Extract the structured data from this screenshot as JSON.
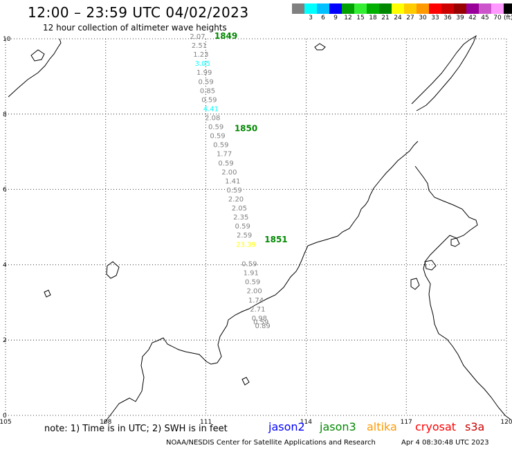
{
  "header": {
    "title": "12:00 – 23:59 UTC 04/02/2023",
    "subtitle": "12 hour collection of altimeter wave heights"
  },
  "scale": {
    "unit": "(ft)",
    "swatches": [
      {
        "color": "#808080",
        "label": ""
      },
      {
        "color": "#00ffff",
        "label": "3"
      },
      {
        "color": "#00c0ff",
        "label": "6"
      },
      {
        "color": "#0000ff",
        "label": "9"
      },
      {
        "color": "#00a000",
        "label": "12"
      },
      {
        "color": "#33ee33",
        "label": "15"
      },
      {
        "color": "#00b000",
        "label": "18"
      },
      {
        "color": "#008800",
        "label": "21"
      },
      {
        "color": "#ffff00",
        "label": "24"
      },
      {
        "color": "#ffcc00",
        "label": "27"
      },
      {
        "color": "#ff9900",
        "label": "30"
      },
      {
        "color": "#ff0000",
        "label": "33"
      },
      {
        "color": "#cc0000",
        "label": "36"
      },
      {
        "color": "#990000",
        "label": "39"
      },
      {
        "color": "#990099",
        "label": "42"
      },
      {
        "color": "#cc55cc",
        "label": "45"
      },
      {
        "color": "#ff99ff",
        "label": "70"
      },
      {
        "color": "#000000",
        "label": ""
      }
    ]
  },
  "axes": {
    "lon_labels": [
      "105",
      "108",
      "111",
      "114",
      "117",
      "120"
    ],
    "lat_labels": [
      "0",
      "2",
      "4",
      "6",
      "8",
      "10"
    ]
  },
  "track": {
    "passes": [
      {
        "id": "1849",
        "lon": 111.6,
        "lat": 10.0
      },
      {
        "id": "1850",
        "lon": 112.2,
        "lat": 7.55
      },
      {
        "id": "1851",
        "lon": 113.1,
        "lat": 4.6
      }
    ],
    "points": [
      {
        "lon": 110.75,
        "lat": 10.0,
        "swh": "2.07",
        "color": "#808080"
      },
      {
        "lon": 110.8,
        "lat": 9.76,
        "swh": "2.51",
        "color": "#808080"
      },
      {
        "lon": 110.85,
        "lat": 9.52,
        "swh": "1.23",
        "color": "#808080"
      },
      {
        "lon": 110.9,
        "lat": 9.28,
        "swh": "3.05",
        "color": "#00ffff"
      },
      {
        "lon": 110.95,
        "lat": 9.04,
        "swh": "1.99",
        "color": "#808080"
      },
      {
        "lon": 111.0,
        "lat": 8.8,
        "swh": "0.59",
        "color": "#808080"
      },
      {
        "lon": 111.05,
        "lat": 8.56,
        "swh": "0.85",
        "color": "#808080"
      },
      {
        "lon": 111.1,
        "lat": 8.32,
        "swh": "0.59",
        "color": "#808080"
      },
      {
        "lon": 111.15,
        "lat": 8.08,
        "swh": "4.41",
        "color": "#00ffff"
      },
      {
        "lon": 111.2,
        "lat": 7.84,
        "swh": "2.08",
        "color": "#808080"
      },
      {
        "lon": 111.3,
        "lat": 7.6,
        "swh": "0.59",
        "color": "#808080"
      },
      {
        "lon": 111.35,
        "lat": 7.36,
        "swh": "0.59",
        "color": "#808080"
      },
      {
        "lon": 111.45,
        "lat": 7.12,
        "swh": "0.59",
        "color": "#808080"
      },
      {
        "lon": 111.55,
        "lat": 6.88,
        "swh": "1.77",
        "color": "#808080"
      },
      {
        "lon": 111.6,
        "lat": 6.64,
        "swh": "0.59",
        "color": "#808080"
      },
      {
        "lon": 111.7,
        "lat": 6.4,
        "swh": "2.00",
        "color": "#808080"
      },
      {
        "lon": 111.8,
        "lat": 6.16,
        "swh": "1.41",
        "color": "#808080"
      },
      {
        "lon": 111.85,
        "lat": 5.92,
        "swh": "0.59",
        "color": "#808080"
      },
      {
        "lon": 111.9,
        "lat": 5.68,
        "swh": "2.20",
        "color": "#808080"
      },
      {
        "lon": 112.0,
        "lat": 5.44,
        "swh": "2.05",
        "color": "#808080"
      },
      {
        "lon": 112.05,
        "lat": 5.2,
        "swh": "2.35",
        "color": "#808080"
      },
      {
        "lon": 112.1,
        "lat": 4.96,
        "swh": "0.59",
        "color": "#808080"
      },
      {
        "lon": 112.15,
        "lat": 4.72,
        "swh": "2.59",
        "color": "#808080"
      },
      {
        "lon": 112.2,
        "lat": 4.48,
        "swh": "23.39",
        "color": "#ffff00"
      },
      {
        "lon": 112.3,
        "lat": 3.96,
        "swh": "0.59",
        "color": "#808080"
      },
      {
        "lon": 112.35,
        "lat": 3.72,
        "swh": "1.91",
        "color": "#808080"
      },
      {
        "lon": 112.4,
        "lat": 3.48,
        "swh": "0.59",
        "color": "#808080"
      },
      {
        "lon": 112.45,
        "lat": 3.24,
        "swh": "2.00",
        "color": "#808080"
      },
      {
        "lon": 112.5,
        "lat": 3.0,
        "swh": "1.74",
        "color": "#808080"
      },
      {
        "lon": 112.55,
        "lat": 2.76,
        "swh": "2.71",
        "color": "#808080"
      },
      {
        "lon": 112.6,
        "lat": 2.52,
        "swh": "0.98",
        "color": "#808080"
      },
      {
        "lon": 112.65,
        "lat": 2.42,
        "swh": "0.59",
        "color": "#808080"
      },
      {
        "lon": 112.7,
        "lat": 2.32,
        "swh": "0.89",
        "color": "#808080"
      }
    ]
  },
  "footer": {
    "note": "note:  1) Time is in UTC;  2) SWH is in feet",
    "missions": [
      {
        "name": "jason2",
        "color": "#0000ff"
      },
      {
        "name": "jason3",
        "color": "#008800"
      },
      {
        "name": "altika",
        "color": "#ff9900"
      },
      {
        "name": "cryosat",
        "color": "#ff0000"
      },
      {
        "name": "s3a",
        "color": "#cc0000"
      }
    ],
    "credit": "NOAA/NESDIS Center for Satellite Applications and Research",
    "updated": "Apr  4 08:30:48 UTC 2023"
  }
}
